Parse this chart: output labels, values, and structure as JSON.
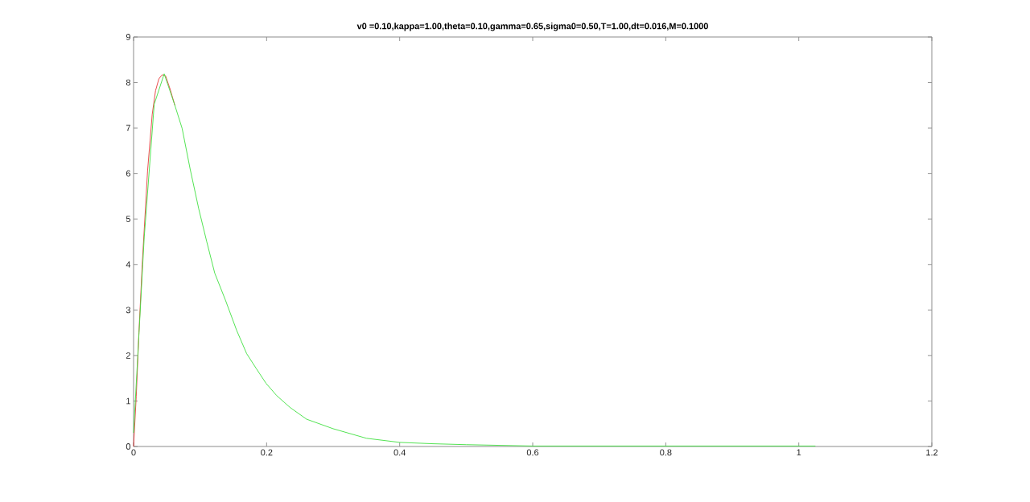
{
  "chart_data": {
    "type": "line",
    "title": "v0 =0.10,kappa=1.00,theta=0.10,gamma=0.65,sigma0=0.50,T=1.00,dt=0.016,M=0.1000",
    "series": [
      {
        "color": "#e83a3a",
        "x": [
          0,
          0.004,
          0.008,
          0.013,
          0.021,
          0.028,
          0.033,
          0.038,
          0.043,
          0.048,
          0.055,
          0.062
        ],
        "values": [
          0,
          1.1,
          2.5,
          4.0,
          6.05,
          7.3,
          7.82,
          8.08,
          8.17,
          8.15,
          7.85,
          7.5
        ]
      },
      {
        "color": "#3fe03f",
        "x": [
          0,
          0.016,
          0.031,
          0.046,
          0.062,
          0.073,
          0.085,
          0.098,
          0.11,
          0.122,
          0.138,
          0.155,
          0.17,
          0.185,
          0.199,
          0.215,
          0.235,
          0.26,
          0.3,
          0.35,
          0.4,
          0.45,
          0.5,
          0.6,
          0.7,
          0.8,
          0.9,
          1.0,
          1.025
        ],
        "values": [
          0.3,
          4.6,
          7.52,
          8.19,
          7.5,
          6.99,
          6.1,
          5.22,
          4.5,
          3.81,
          3.22,
          2.55,
          2.04,
          1.7,
          1.39,
          1.12,
          0.86,
          0.6,
          0.39,
          0.18,
          0.09,
          0.06,
          0.04,
          0.01,
          0.01,
          0.01,
          0.01,
          0.01,
          0.01
        ]
      }
    ],
    "xlim": [
      0,
      1.2
    ],
    "xticks": [
      0,
      0.2,
      0.4,
      0.6,
      0.8,
      1,
      1.2
    ],
    "ylim": [
      0,
      9
    ],
    "yticks": [
      0,
      1,
      2,
      3,
      4,
      5,
      6,
      7,
      8,
      9
    ],
    "grid": false,
    "marker": "none",
    "line_style": "solid"
  }
}
